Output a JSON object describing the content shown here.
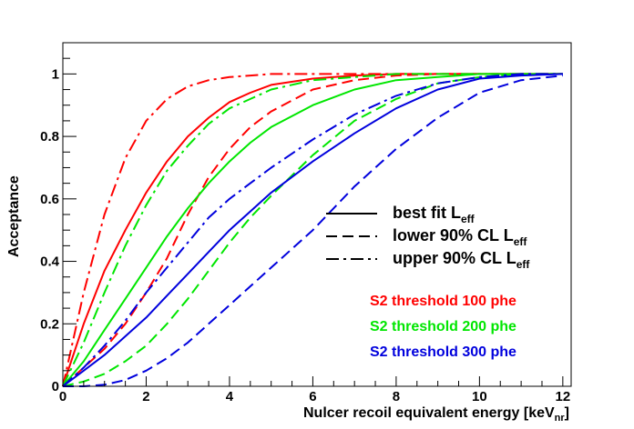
{
  "chart_data": {
    "type": "line",
    "xlabel": "Nulcer recoil equivalent energy [keV",
    "xlabel_sub": "nr",
    "xlabel_end": "]",
    "ylabel": "Acceptance",
    "xlim": [
      0,
      12.2
    ],
    "ylim": [
      0,
      1.1
    ],
    "x_ticks": [
      0,
      2,
      4,
      6,
      8,
      10,
      12
    ],
    "y_ticks": [
      0,
      0.2,
      0.4,
      0.6,
      0.8,
      1
    ],
    "x_tick_labels": [
      "0",
      "2",
      "4",
      "6",
      "8",
      "10",
      "12"
    ],
    "y_tick_labels": [
      "0",
      "0.2",
      "0.4",
      "0.6",
      "0.8",
      "1"
    ],
    "grid": false,
    "legend": {
      "placement": "middle-right",
      "entries": [
        {
          "style": "solid",
          "label": "best fit L",
          "sub": "eff"
        },
        {
          "style": "dashed",
          "label": "lower 90% CL L",
          "sub": "eff"
        },
        {
          "style": "dashdot",
          "label": "upper 90% CL L",
          "sub": "eff"
        }
      ]
    },
    "threshold_labels": [
      {
        "text": "S2 threshold 100 phe",
        "color": "#ff0000"
      },
      {
        "text": "S2 threshold 200 phe",
        "color": "#00e600"
      },
      {
        "text": "S2 threshold 300 phe",
        "color": "#0000dd"
      }
    ],
    "series": [
      {
        "threshold": 100,
        "color": "#ff0000",
        "style": "solid",
        "x": [
          0,
          0.5,
          1,
          1.5,
          2,
          2.5,
          3,
          3.5,
          4,
          4.5,
          5,
          6,
          7,
          8,
          9,
          10,
          11,
          12
        ],
        "y": [
          0,
          0.2,
          0.37,
          0.5,
          0.62,
          0.72,
          0.8,
          0.86,
          0.91,
          0.94,
          0.965,
          0.985,
          0.995,
          1.0,
          1.0,
          1.0,
          1.0,
          1.0
        ]
      },
      {
        "threshold": 100,
        "color": "#ff0000",
        "style": "dashed",
        "x": [
          0,
          0.5,
          1,
          1.5,
          2,
          2.5,
          3,
          3.5,
          4,
          4.5,
          5,
          6,
          7,
          8,
          9,
          10,
          11,
          12
        ],
        "y": [
          0,
          0.06,
          0.12,
          0.2,
          0.3,
          0.41,
          0.55,
          0.67,
          0.76,
          0.83,
          0.88,
          0.95,
          0.98,
          0.995,
          1.0,
          1.0,
          1.0,
          1.0
        ]
      },
      {
        "threshold": 100,
        "color": "#ff0000",
        "style": "dashdot",
        "x": [
          0,
          0.5,
          1,
          1.5,
          2,
          2.5,
          3,
          3.5,
          4,
          4.5,
          5,
          6,
          7,
          8,
          9,
          10,
          11,
          12
        ],
        "y": [
          0,
          0.3,
          0.55,
          0.73,
          0.85,
          0.92,
          0.96,
          0.98,
          0.99,
          0.995,
          1.0,
          1.0,
          1.0,
          1.0,
          1.0,
          1.0,
          1.0,
          1.0
        ]
      },
      {
        "threshold": 200,
        "color": "#00e600",
        "style": "solid",
        "x": [
          0,
          0.5,
          1,
          1.5,
          2,
          2.5,
          3,
          3.5,
          4,
          4.5,
          5,
          6,
          7,
          8,
          9,
          10,
          11,
          12
        ],
        "y": [
          0,
          0.08,
          0.18,
          0.28,
          0.38,
          0.48,
          0.57,
          0.65,
          0.72,
          0.78,
          0.83,
          0.9,
          0.95,
          0.98,
          0.99,
          1.0,
          1.0,
          1.0
        ]
      },
      {
        "threshold": 200,
        "color": "#00e600",
        "style": "dashed",
        "x": [
          0,
          0.5,
          1,
          1.5,
          2,
          2.5,
          3,
          3.5,
          4,
          4.5,
          5,
          6,
          7,
          8,
          9,
          10,
          11,
          12
        ],
        "y": [
          0,
          0.015,
          0.04,
          0.08,
          0.13,
          0.2,
          0.28,
          0.37,
          0.46,
          0.54,
          0.61,
          0.74,
          0.85,
          0.92,
          0.97,
          0.99,
          1.0,
          1.0
        ]
      },
      {
        "threshold": 200,
        "color": "#00e600",
        "style": "dashdot",
        "x": [
          0,
          0.5,
          1,
          1.5,
          2,
          2.5,
          3,
          3.5,
          4,
          4.5,
          5,
          6,
          7,
          8,
          9,
          10,
          11,
          12
        ],
        "y": [
          0,
          0.14,
          0.3,
          0.45,
          0.58,
          0.69,
          0.77,
          0.84,
          0.89,
          0.92,
          0.95,
          0.98,
          0.99,
          1.0,
          1.0,
          1.0,
          1.0,
          1.0
        ]
      },
      {
        "threshold": 300,
        "color": "#0000dd",
        "style": "solid",
        "x": [
          0,
          0.5,
          1,
          1.5,
          2,
          2.5,
          3,
          3.5,
          4,
          4.5,
          5,
          6,
          7,
          8,
          9,
          10,
          11,
          12
        ],
        "y": [
          0,
          0.05,
          0.1,
          0.16,
          0.22,
          0.29,
          0.36,
          0.43,
          0.5,
          0.56,
          0.62,
          0.72,
          0.81,
          0.89,
          0.95,
          0.985,
          0.995,
          1.0
        ]
      },
      {
        "threshold": 300,
        "color": "#0000dd",
        "style": "dashed",
        "x": [
          0,
          0.5,
          1,
          1.5,
          2,
          2.5,
          3,
          3.5,
          4,
          4.5,
          5,
          6,
          7,
          8,
          9,
          10,
          11,
          12
        ],
        "y": [
          0,
          0.0,
          0.005,
          0.02,
          0.05,
          0.09,
          0.14,
          0.2,
          0.26,
          0.32,
          0.38,
          0.5,
          0.64,
          0.76,
          0.86,
          0.94,
          0.98,
          0.995
        ]
      },
      {
        "threshold": 300,
        "color": "#0000dd",
        "style": "dashdot",
        "x": [
          0,
          0.5,
          1,
          1.5,
          2,
          2.5,
          3,
          3.5,
          4,
          4.5,
          5,
          6,
          7,
          8,
          9,
          10,
          11,
          12
        ],
        "y": [
          0,
          0.06,
          0.13,
          0.21,
          0.3,
          0.38,
          0.46,
          0.54,
          0.6,
          0.65,
          0.7,
          0.79,
          0.87,
          0.93,
          0.97,
          0.99,
          1.0,
          1.0
        ]
      }
    ]
  }
}
